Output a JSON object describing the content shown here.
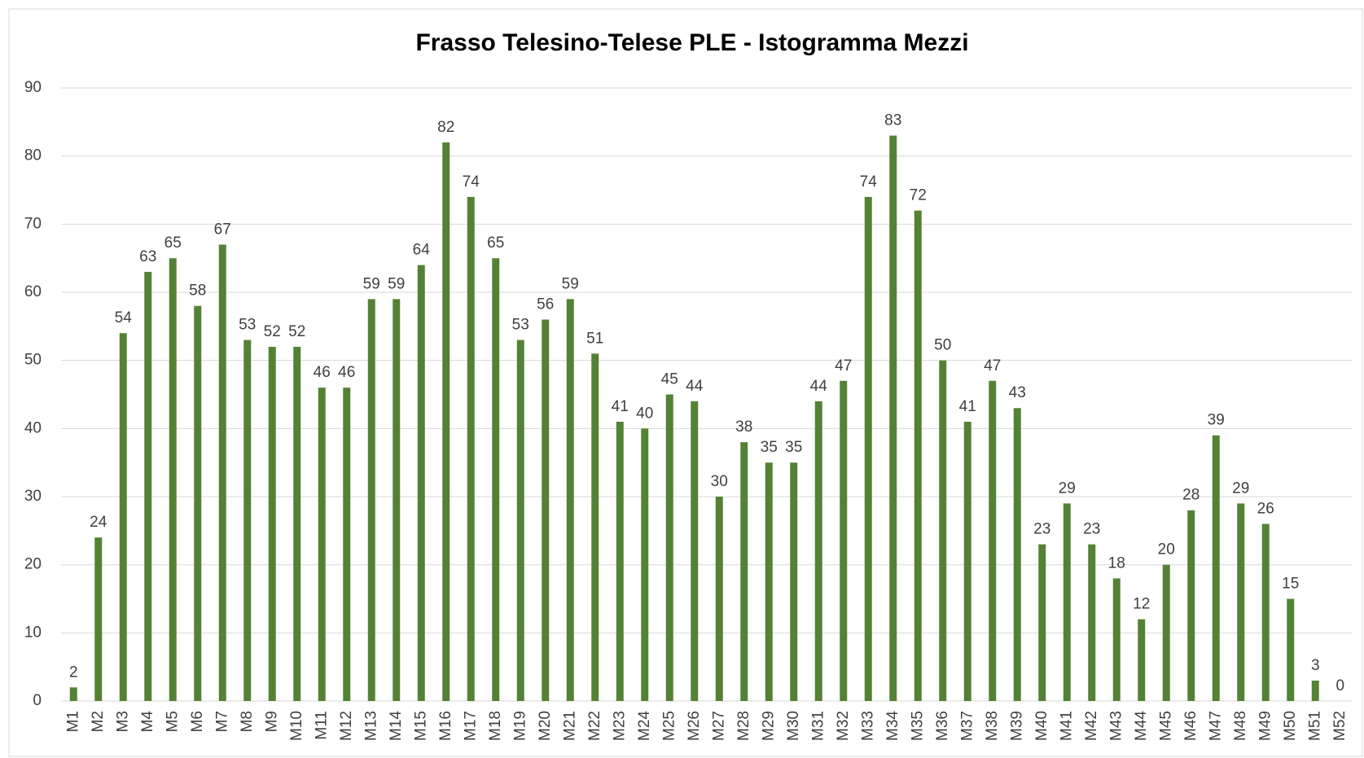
{
  "chart_data": {
    "type": "bar",
    "title": "Frasso Telesino-Telese PLE - Istogramma Mezzi",
    "categories": [
      "M1",
      "M2",
      "M3",
      "M4",
      "M5",
      "M6",
      "M7",
      "M8",
      "M9",
      "M10",
      "M11",
      "M12",
      "M13",
      "M14",
      "M15",
      "M16",
      "M17",
      "M18",
      "M19",
      "M20",
      "M21",
      "M22",
      "M23",
      "M24",
      "M25",
      "M26",
      "M27",
      "M28",
      "M29",
      "M30",
      "M31",
      "M32",
      "M33",
      "M34",
      "M35",
      "M36",
      "M37",
      "M38",
      "M39",
      "M40",
      "M41",
      "M42",
      "M43",
      "M44",
      "M45",
      "M46",
      "M47",
      "M48",
      "M49",
      "M50",
      "M51",
      "M52"
    ],
    "values": [
      2,
      24,
      54,
      63,
      65,
      58,
      67,
      53,
      52,
      52,
      46,
      46,
      59,
      59,
      64,
      82,
      74,
      65,
      53,
      56,
      59,
      51,
      41,
      40,
      45,
      44,
      30,
      38,
      35,
      35,
      44,
      47,
      74,
      83,
      72,
      50,
      41,
      47,
      43,
      23,
      29,
      23,
      18,
      12,
      20,
      28,
      39,
      29,
      26,
      15,
      3,
      0
    ],
    "color": "#548235",
    "ylim": [
      0,
      90
    ],
    "yticks": [
      0,
      10,
      20,
      30,
      40,
      50,
      60,
      70,
      80,
      90
    ],
    "grid": true
  }
}
